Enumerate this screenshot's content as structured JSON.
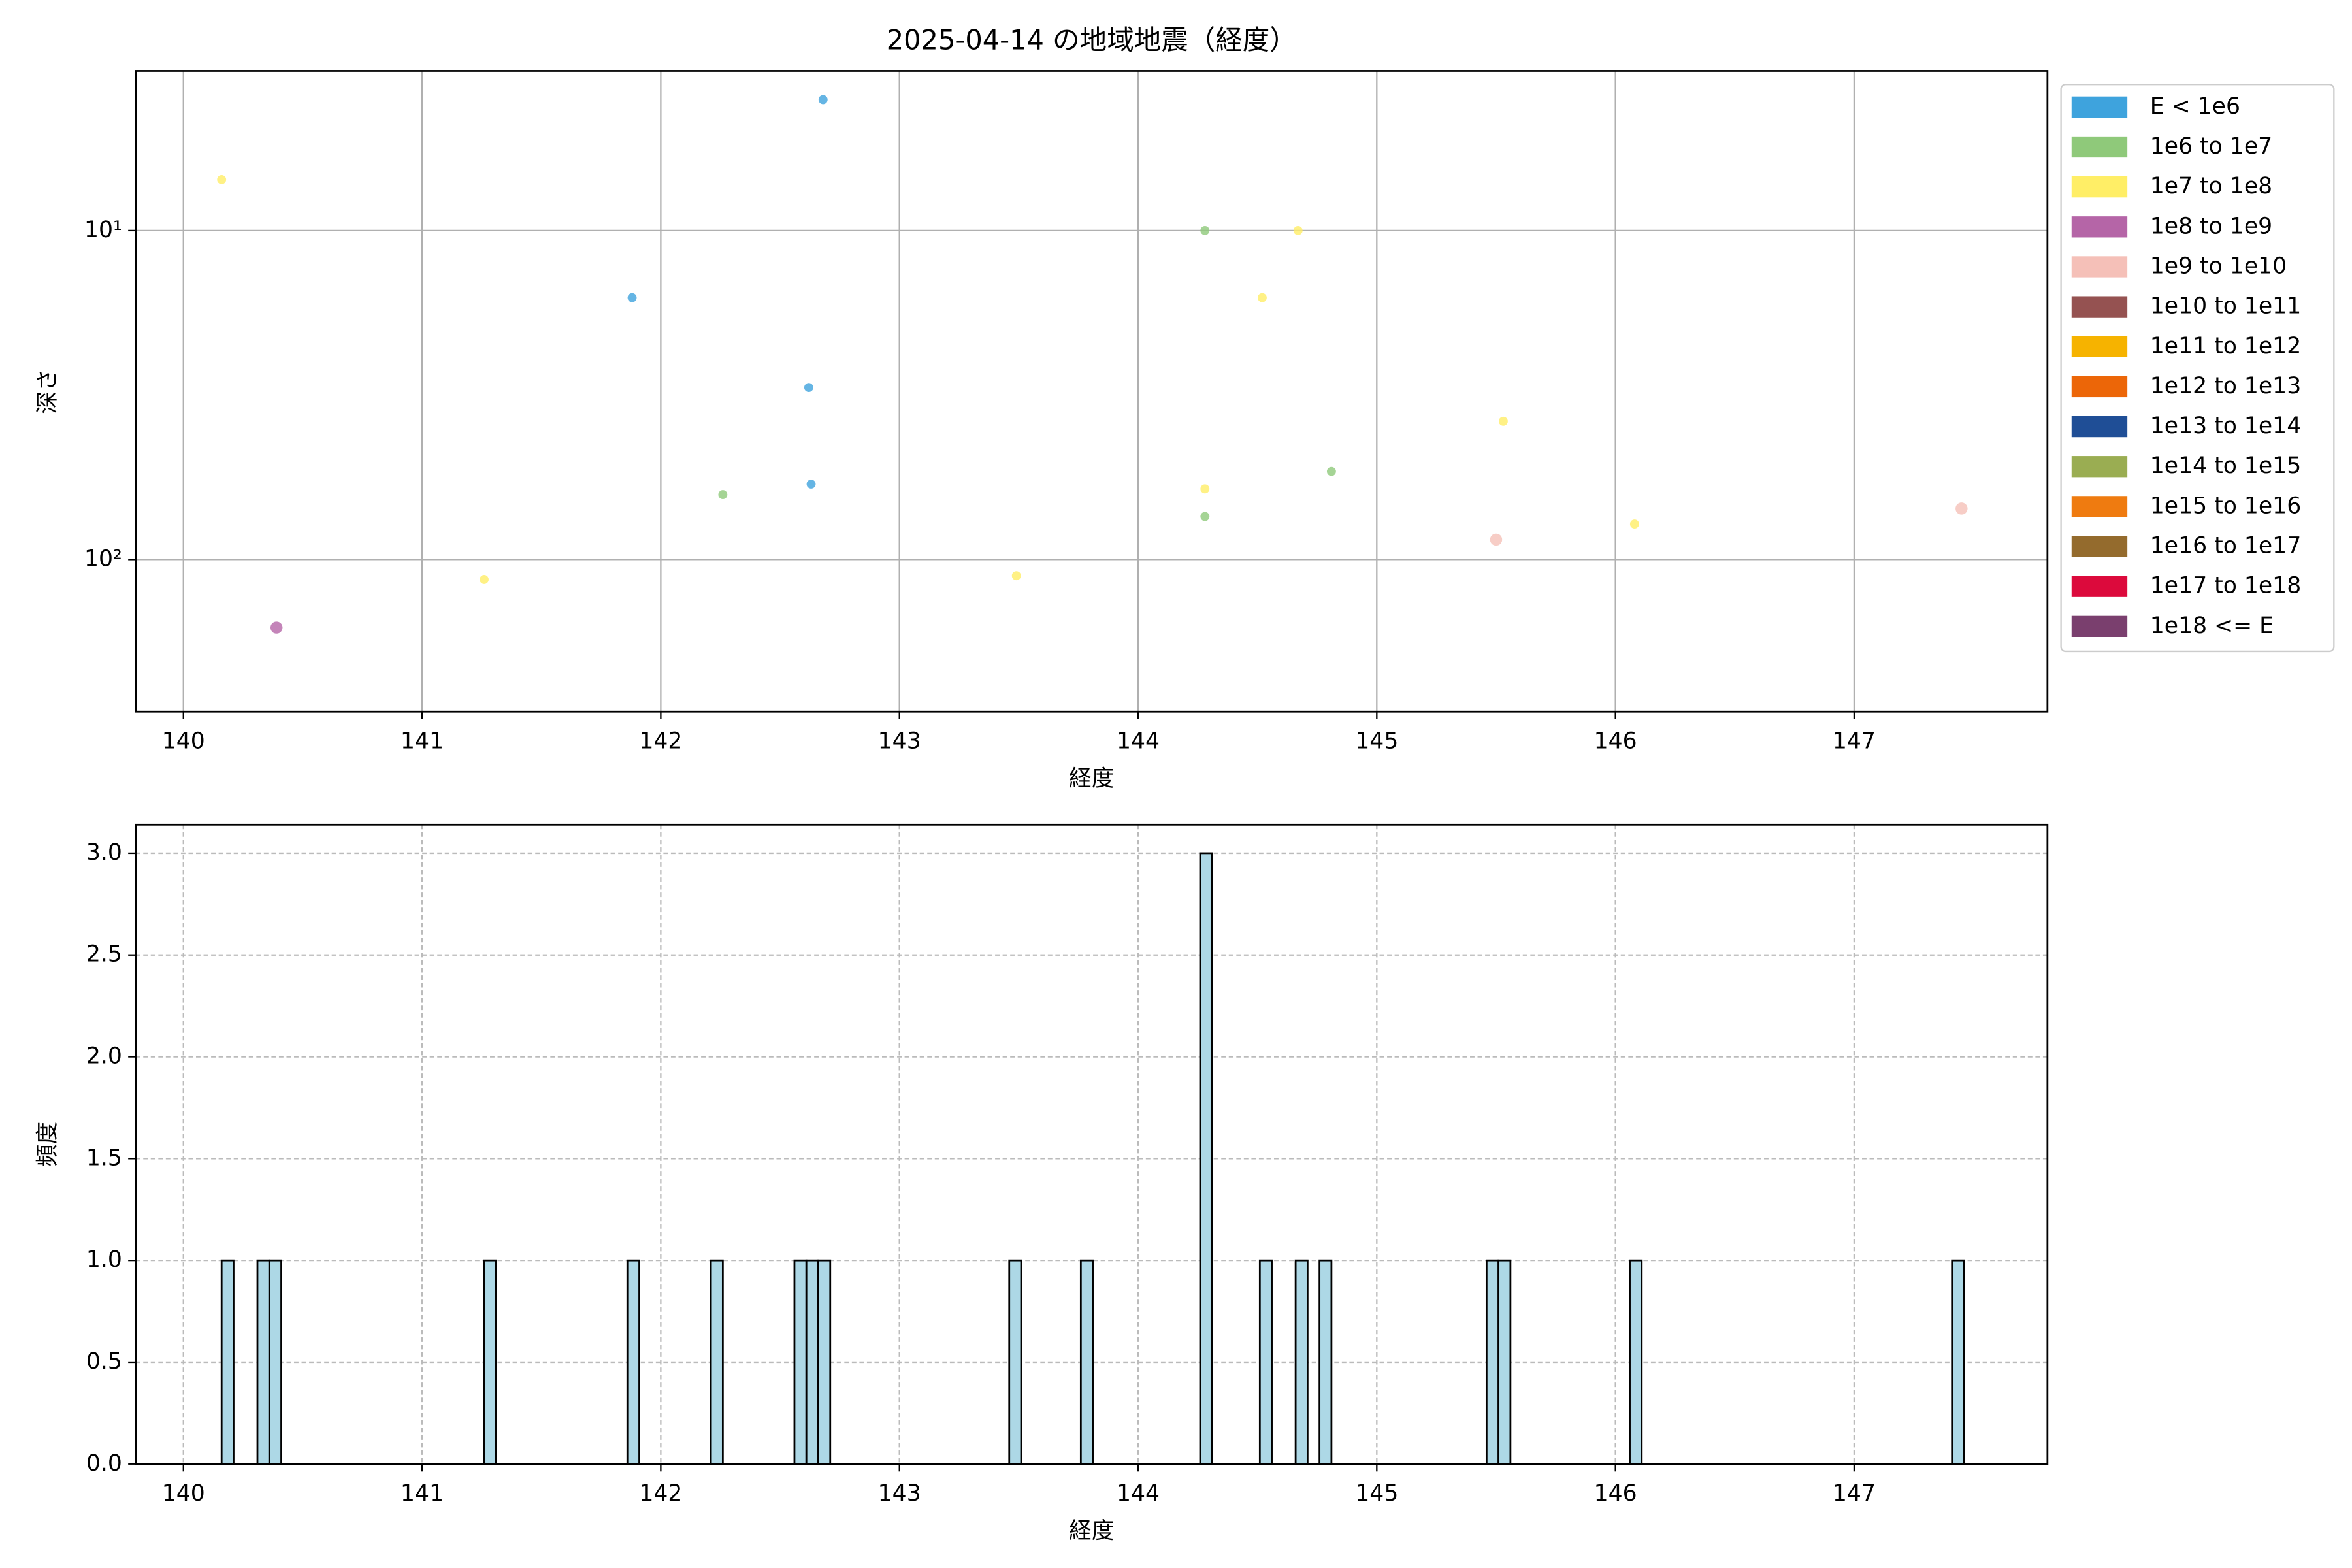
{
  "chart_data": [
    {
      "type": "scatter",
      "title": "2025-04-14 の地域地震（経度）",
      "xlabel": "経度",
      "ylabel": "深さ",
      "xlim": [
        139.8,
        147.81
      ],
      "xticks": [
        140,
        141,
        142,
        143,
        144,
        145,
        146,
        147
      ],
      "ylim": [
        3.27,
        290
      ],
      "yscale": "log",
      "y_inverted": true,
      "yticks": [
        {
          "value": 10,
          "label": "10¹"
        },
        {
          "value": 100,
          "label": "10²"
        }
      ],
      "grid": true,
      "legend": "outside right",
      "series": [
        {
          "name": "E < 1e6",
          "color": "#3ea3dd",
          "x": [
            141.88,
            142.62,
            142.63,
            142.68
          ],
          "values": [
            16,
            30,
            59,
            4
          ]
        },
        {
          "name": "1e6 to 1e7",
          "color": "#8fc97a",
          "x": [
            142.26,
            144.28,
            144.28,
            144.81
          ],
          "values": [
            63.5,
            10,
            74,
            54
          ]
        },
        {
          "name": "1e7 to 1e8",
          "color": "#ffee66",
          "x": [
            140.16,
            141.26,
            143.49,
            144.28,
            144.52,
            144.67,
            145.53,
            146.08
          ],
          "values": [
            7,
            115,
            112,
            61,
            16,
            10,
            38,
            78
          ]
        },
        {
          "name": "1e8 to 1e9",
          "color": "#b565a7",
          "x": [
            140.39
          ],
          "values": [
            161
          ]
        },
        {
          "name": "1e9 to 1e10",
          "color": "#f5c0b8",
          "x": [
            145.5,
            147.45
          ],
          "values": [
            87,
            70
          ]
        },
        {
          "name": "1e10 to 1e11",
          "color": "#955251",
          "x": [],
          "values": []
        },
        {
          "name": "1e11 to 1e12",
          "color": "#f6b300",
          "x": [],
          "values": []
        },
        {
          "name": "1e12 to 1e13",
          "color": "#ec6608",
          "x": [],
          "values": []
        },
        {
          "name": "1e13 to 1e14",
          "color": "#1f4e96",
          "x": [],
          "values": []
        },
        {
          "name": "1e14 to 1e15",
          "color": "#9aad52",
          "x": [],
          "values": []
        },
        {
          "name": "1e15 to 1e16",
          "color": "#ef7b10",
          "x": [],
          "values": []
        },
        {
          "name": "1e16 to 1e17",
          "color": "#946b2d",
          "x": [],
          "values": []
        },
        {
          "name": "1e17 to 1e18",
          "color": "#dc0a3c",
          "x": [],
          "values": []
        },
        {
          "name": "1e18 <= E",
          "color": "#7a3f6e",
          "x": [],
          "values": []
        }
      ]
    },
    {
      "type": "histogram",
      "xlabel": "経度",
      "ylabel": "頻度",
      "color": "#add8e6",
      "edgecolor": "#000000",
      "xlim": [
        139.8,
        147.81
      ],
      "xticks": [
        140,
        141,
        142,
        143,
        144,
        145,
        146,
        147
      ],
      "ylim": [
        0,
        3.14
      ],
      "yticks": [
        {
          "value": 0,
          "label": "0.0"
        },
        0.5,
        {
          "value": 1,
          "label": "1.0"
        },
        1.5,
        {
          "value": 2,
          "label": "2.0"
        },
        2.5,
        {
          "value": 3,
          "label": "3.0"
        }
      ],
      "grid": true,
      "bin_start": [
        140.16,
        140.31,
        140.36,
        141.26,
        141.86,
        142.21,
        142.56,
        142.61,
        142.66,
        143.46,
        143.76,
        144.26,
        144.51,
        144.66,
        144.76,
        145.46,
        145.51,
        146.06,
        147.41
      ],
      "bin_end": [
        140.21,
        140.36,
        140.41,
        141.31,
        141.91,
        142.26,
        142.61,
        142.66,
        142.71,
        143.51,
        143.81,
        144.31,
        144.56,
        144.71,
        144.81,
        145.51,
        145.56,
        146.11,
        147.46
      ],
      "values": [
        1,
        1,
        1,
        1,
        1,
        1,
        1,
        1,
        1,
        1,
        1,
        3,
        1,
        1,
        1,
        1,
        1,
        1,
        1
      ]
    }
  ]
}
